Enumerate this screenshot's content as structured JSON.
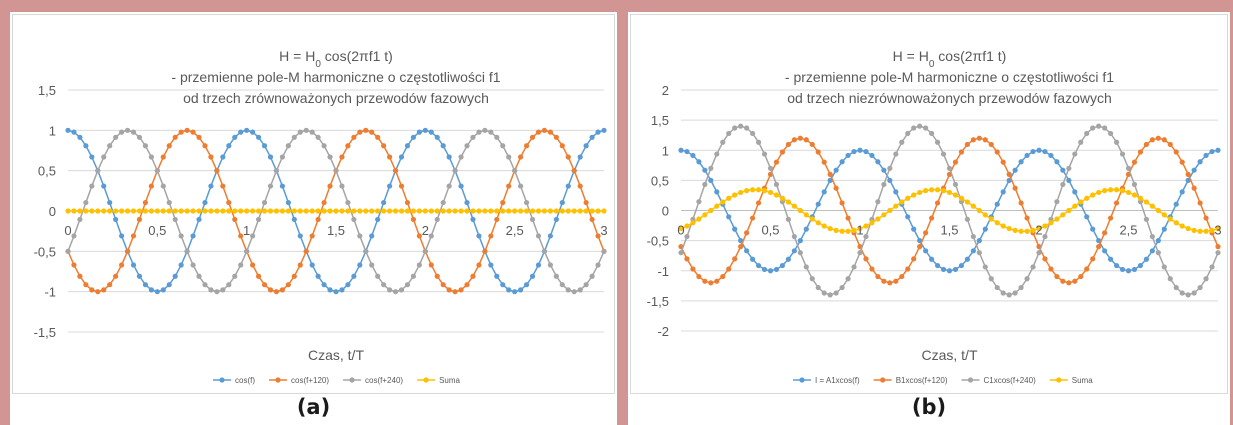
{
  "charts": {
    "a": {
      "caption": "(a)",
      "chart_data": {
        "type": "line",
        "title_line1_prefix": "H = H",
        "title_line1_sub": "0",
        "title_line1_suffix": " cos(2πf1 t)",
        "title_line2": "- przemienne pole-M harmoniczne o częstotliwości f1",
        "title_line3": "od trzech zrównoważonych przewodów fazowych",
        "xlabel": "Czas, t/T",
        "ylabel": "",
        "xlim": [
          0,
          3
        ],
        "ylim": [
          -1.5,
          1.5
        ],
        "x_ticks": [
          "0",
          "0,5",
          "1",
          "1,5",
          "2",
          "2,5",
          "3"
        ],
        "y_ticks": [
          "1,5",
          "1",
          "0,5",
          "0",
          "-0,5",
          "-1",
          "-1,5"
        ],
        "grid": "horizontal",
        "legend_position": "bottom",
        "x_samples": "0 to 3 step 1/30",
        "series": [
          {
            "name": "cos(f)",
            "formula": "1.0·cos(2πx)",
            "color": "#5b9bd5"
          },
          {
            "name": "cos(f+120)",
            "formula": "1.0·cos(2πx + 120°)",
            "color": "#ed7d31"
          },
          {
            "name": "cos(f+240)",
            "formula": "1.0·cos(2πx + 240°)",
            "color": "#a5a5a5"
          },
          {
            "name": "Suma",
            "formula": "sum of the three series (= 0)",
            "color": "#ffc000"
          }
        ]
      }
    },
    "b": {
      "caption": "(b)",
      "chart_data": {
        "type": "line",
        "title_line1_prefix": "H = H",
        "title_line1_sub": "0",
        "title_line1_suffix": " cos(2πf1 t)",
        "title_line2": "- przemienne pole-M harmoniczne o częstotliwości f1",
        "title_line3": "od trzech niezrównoważonych przewodów fazowych",
        "xlabel": "Czas, t/T",
        "ylabel": "",
        "xlim": [
          0,
          3
        ],
        "ylim": [
          -2,
          2
        ],
        "x_ticks": [
          "0",
          "0,5",
          "1",
          "1,5",
          "2",
          "2,5",
          "3"
        ],
        "y_ticks": [
          "2",
          "1,5",
          "1",
          "0,5",
          "0",
          "-0,5",
          "-1",
          "-1,5",
          "-2"
        ],
        "grid": "horizontal",
        "legend_position": "bottom",
        "x_samples": "0 to 3 step 1/30",
        "series": [
          {
            "name": "I = A1xcos(f)",
            "amplitude": 1.0,
            "phase_deg": 0,
            "color": "#5b9bd5"
          },
          {
            "name": "B1xcos(f+120)",
            "amplitude": 1.2,
            "phase_deg": 120,
            "color": "#ed7d31"
          },
          {
            "name": "C1xcos(f+240)",
            "amplitude": 1.4,
            "phase_deg": 240,
            "color": "#a5a5a5"
          },
          {
            "name": "Suma",
            "formula": "sum of the three series (amplitude ≈ 0.35)",
            "color": "#ffc000"
          }
        ]
      }
    }
  }
}
